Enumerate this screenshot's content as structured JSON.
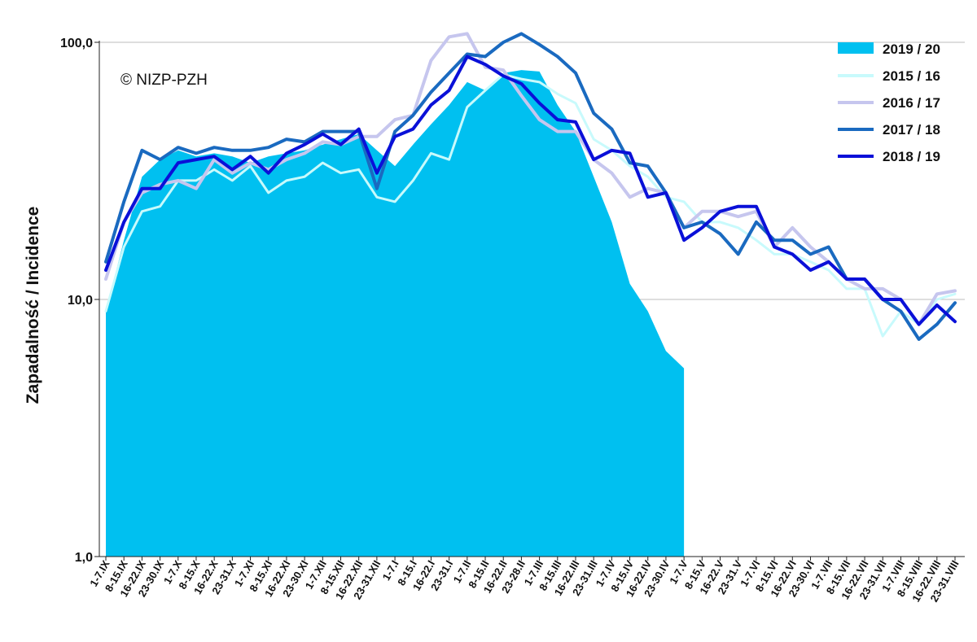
{
  "chart_data": {
    "type": "line",
    "y_scale": "log",
    "ylim": [
      1,
      100
    ],
    "ylabel": "Zapadalność  /  Incidence",
    "annotation": "© NIZP-PZH",
    "y_ticks": [
      "1,0",
      "10,0",
      "100,0"
    ],
    "y_tick_values": [
      1,
      10,
      100
    ],
    "grid": "horizontal",
    "legend_position": "top-right",
    "categories": [
      "1-7.IX",
      "8-15.IX",
      "16-22.IX",
      "23-30.IX",
      "1-7.X",
      "8-15.X",
      "16-22.X",
      "23-31.X",
      "1-7.XI",
      "8-15.XI",
      "16-22.XI",
      "23-30.XI",
      "1-7.XII",
      "8-15.XII",
      "16-22.XII",
      "23-31.XII",
      "1-7.I",
      "8-15.I",
      "16-22.I",
      "23-31.I",
      "1-7.II",
      "8-15.II",
      "16-22.II",
      "23-28.II",
      "1-7.III",
      "8-15.III",
      "16-22.III",
      "23-31.III",
      "1-7.IV",
      "8-15.IV",
      "16-22.IV",
      "23-30.IV",
      "1-7.V",
      "8-15.V",
      "16-22.V",
      "23-31.V",
      "1-7.VI",
      "8-15.VI",
      "16-22.VI",
      "23-30.VI",
      "1-7.VII",
      "8-15.VII",
      "16-22.VII",
      "23-31.VII",
      "1-7.VIII",
      "8-15.VIII",
      "16-22.VIII",
      "23-31.VIII"
    ],
    "x_tick_labels": [
      "1-7.IX",
      "8-15.IX",
      "16-22.IX",
      "23-30.IX",
      "1-7.X",
      "8-15.X",
      "16-22.X",
      "23-31.X",
      "1-7.XI",
      "8-15.XI",
      "16-22.XI",
      "23-30.XI",
      "1-7.XII",
      "8-15.XII",
      "16-22.XII",
      "23-31.XII",
      "1-7.I",
      "8-15.I",
      "16-22.I",
      "23-31.I",
      "1-7.II",
      "8-15.II",
      "16-22.II",
      "23-28.II",
      "1-7.III",
      "8-15.III",
      "16-22.III",
      "23-31.III",
      "1-7.IV",
      "8-15.IV",
      "16-22.IV",
      "23-30.IV",
      "1-7.V",
      "8-15.V",
      "16-22.V",
      "23-31.V",
      "1-7.VI",
      "8-15.VI",
      "16-22.VI",
      "23-30.VI",
      "1-7.VII",
      "8-15.VII",
      "16-22.VII",
      "23-31.VII",
      "1-7.VIII",
      "8-15.VIII",
      "16-22.VIII",
      "23-31.VIII"
    ],
    "area_series": {
      "name": "2019 / 20",
      "color": "#00c0f0",
      "values": [
        9,
        17,
        30,
        35,
        38,
        36,
        37,
        36,
        34,
        36,
        37,
        38,
        40,
        42,
        44,
        38,
        33,
        40,
        48,
        57,
        70,
        65,
        76,
        78,
        77,
        57,
        45,
        30,
        20,
        11.5,
        9,
        6.3,
        5.4
      ]
    },
    "series": [
      {
        "name": "2015 / 16",
        "color": "#c8fafc",
        "values": [
          9,
          16,
          22,
          23,
          29,
          29,
          32,
          29,
          33,
          26,
          29,
          30,
          34,
          31,
          32,
          25,
          24,
          29,
          37,
          35,
          56,
          65,
          75,
          72,
          70,
          63,
          58,
          42,
          38,
          33,
          30,
          25,
          24,
          20,
          20,
          19,
          17,
          15,
          15,
          14,
          13,
          11,
          11,
          7.2,
          9,
          8,
          10,
          10.5
        ]
      },
      {
        "name": "2016 / 17",
        "color": "#c6c6ee",
        "values": [
          12,
          20,
          26,
          28,
          29,
          27,
          35,
          31,
          34,
          32,
          35,
          37,
          41,
          40,
          43,
          43,
          50,
          52,
          85,
          105,
          108,
          80,
          78,
          62,
          50,
          45,
          45,
          35,
          31,
          25,
          27,
          26,
          19,
          22,
          22,
          21,
          22,
          16,
          19,
          16,
          14,
          12,
          11,
          11,
          10,
          8,
          10.5,
          10.8
        ]
      },
      {
        "name": "2017 / 18",
        "color": "#1a6ac0",
        "values": [
          14,
          24,
          38,
          35,
          39,
          37,
          39,
          38,
          38,
          39,
          42,
          41,
          45,
          45,
          45,
          27,
          45,
          52,
          64,
          76,
          90,
          88,
          100,
          108,
          98,
          88,
          76,
          53,
          46,
          34,
          33,
          26,
          19,
          20,
          18,
          15,
          20,
          17,
          17,
          15,
          16,
          12,
          12,
          10,
          9,
          7,
          8,
          9.7
        ]
      },
      {
        "name": "2018 / 19",
        "color": "#0a10d8",
        "values": [
          13,
          20,
          27,
          27,
          34,
          35,
          36,
          32,
          36,
          31,
          37,
          40,
          44,
          40,
          46,
          31,
          43,
          46,
          57,
          65,
          88,
          82,
          74,
          69,
          58,
          50,
          49,
          35,
          38,
          37,
          25,
          26,
          17,
          19,
          22,
          23,
          23,
          16,
          15,
          13,
          14,
          12,
          12,
          10,
          10,
          8,
          9.5,
          8.2
        ]
      }
    ]
  }
}
